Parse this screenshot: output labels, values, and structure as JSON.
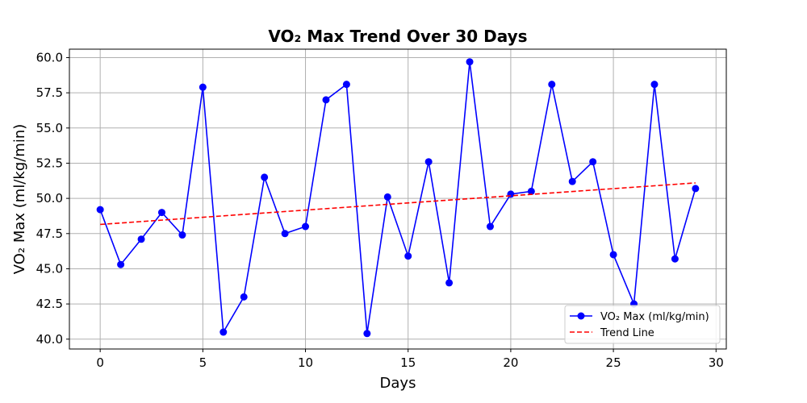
{
  "chart_data": {
    "type": "line",
    "title": "VO₂ Max Trend Over 30 Days",
    "xlabel": "Days",
    "ylabel": "VO₂ Max (ml/kg/min)",
    "xlim": [
      -1.5,
      30.5
    ],
    "ylim": [
      39.3,
      60.6
    ],
    "xticks": [
      0,
      5,
      10,
      15,
      20,
      25,
      30
    ],
    "yticks": [
      40.0,
      42.5,
      45.0,
      47.5,
      50.0,
      52.5,
      55.0,
      57.5,
      60.0
    ],
    "grid": true,
    "legend_position": "lower-right",
    "series": [
      {
        "name": "VO₂ Max (ml/kg/min)",
        "color": "#0000ff",
        "style": "solid",
        "marker": "circle",
        "x": [
          0,
          1,
          2,
          3,
          4,
          5,
          6,
          7,
          8,
          9,
          10,
          11,
          12,
          13,
          14,
          15,
          16,
          17,
          18,
          19,
          20,
          21,
          22,
          23,
          24,
          25,
          26,
          27,
          28,
          29
        ],
        "values": [
          49.2,
          45.3,
          47.1,
          49.0,
          47.4,
          57.9,
          40.5,
          43.0,
          51.5,
          47.5,
          48.0,
          57.0,
          58.1,
          40.4,
          50.1,
          45.9,
          52.6,
          44.0,
          59.7,
          48.0,
          50.3,
          50.5,
          58.1,
          51.2,
          52.6,
          46.0,
          42.5,
          58.1,
          45.7,
          50.7
        ]
      },
      {
        "name": "Trend Line",
        "color": "#ff0000",
        "style": "dashed",
        "marker": "none",
        "x": [
          0,
          29
        ],
        "values": [
          48.15,
          51.1
        ]
      }
    ]
  }
}
